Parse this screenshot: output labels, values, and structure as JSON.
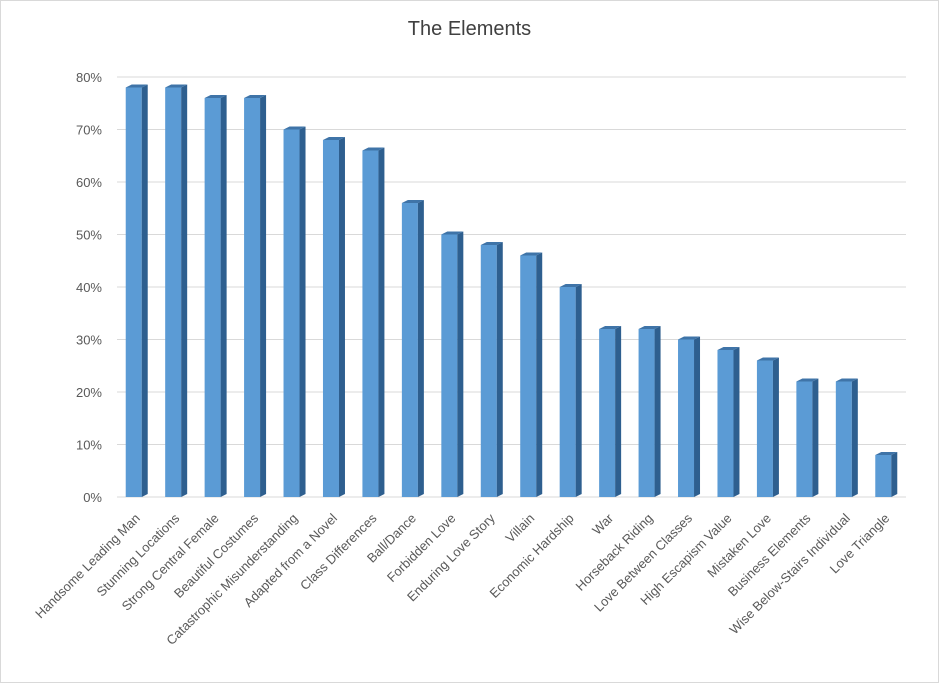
{
  "chart_data": {
    "type": "bar",
    "title": "The Elements",
    "xlabel": "",
    "ylabel": "",
    "ylim": [
      0,
      80
    ],
    "y_ticks": [
      "0%",
      "10%",
      "20%",
      "30%",
      "40%",
      "50%",
      "60%",
      "70%",
      "80%"
    ],
    "grid": true,
    "bar_color": "#5b9bd5",
    "bar_side_color": "#2e5f8f",
    "bar_top_color": "#3f74a8",
    "categories": [
      "Handsome Leading Man",
      "Stunning Locations",
      "Strong Central Female",
      "Beautiful Costumes",
      "Catastrophic Misunderstanding",
      "Adapted from a Novel",
      "Class Differences",
      "Ball/Dance",
      "Forbidden Love",
      "Enduring Love Story",
      "Villain",
      "Economic Hardship",
      "War",
      "Horseback Riding",
      "Love Between Classes",
      "High Escapism Value",
      "Mistaken Love",
      "Business Elements",
      "Wise Below-Stairs Individual",
      "Love Triangle"
    ],
    "values": [
      78,
      78,
      76,
      76,
      70,
      68,
      66,
      56,
      50,
      48,
      46,
      40,
      32,
      32,
      30,
      28,
      26,
      22,
      22,
      8
    ]
  }
}
